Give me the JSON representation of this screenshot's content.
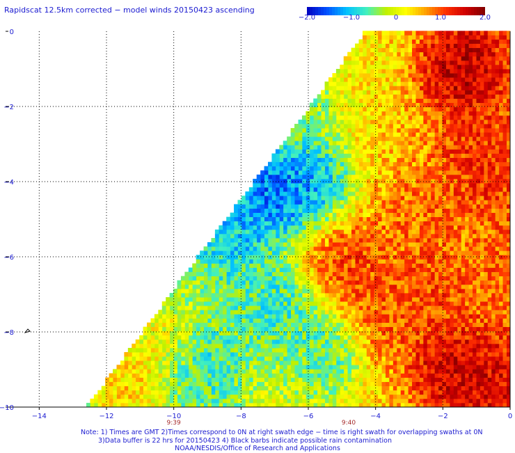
{
  "title": "Rapidscat 12.5km corrected − model winds 20150423 ascending",
  "colorbar": {
    "min": -2.0,
    "max": 2.0,
    "ticks": [
      {
        "value": -2.0,
        "label": "−2.0"
      },
      {
        "value": -1.0,
        "label": "−1.0"
      },
      {
        "value": 0,
        "label": "0"
      },
      {
        "value": 1.0,
        "label": "1.0"
      },
      {
        "value": 2.0,
        "label": "2.0"
      }
    ],
    "colors": [
      "#0000c0",
      "#0050ff",
      "#00c0ff",
      "#40f0c0",
      "#c0f000",
      "#ffff00",
      "#ffa000",
      "#ff3000",
      "#d00000",
      "#800000"
    ]
  },
  "chart_data": {
    "type": "heatmap",
    "title": "Rapidscat 12.5km corrected − model winds 20150423 ascending",
    "xlabel": "",
    "ylabel": "",
    "xlim": [
      -15,
      0
    ],
    "ylim": [
      -10,
      0
    ],
    "x_ticks": [
      {
        "value": -14,
        "label": "−14"
      },
      {
        "value": -12,
        "label": "−12"
      },
      {
        "value": -10,
        "label": "−10"
      },
      {
        "value": -8,
        "label": "−8"
      },
      {
        "value": -6,
        "label": "−6"
      },
      {
        "value": -4,
        "label": "−4"
      },
      {
        "value": -2,
        "label": "−2"
      },
      {
        "value": 0,
        "label": "0"
      }
    ],
    "y_ticks": [
      {
        "value": 0,
        "label": "0"
      },
      {
        "value": -2,
        "label": "−2"
      },
      {
        "value": -4,
        "label": "−4"
      },
      {
        "value": -6,
        "label": "−6"
      },
      {
        "value": -8,
        "label": "−8"
      },
      {
        "value": -10,
        "label": "−10"
      }
    ],
    "grid": true,
    "swath_edge": [
      [
        -12.6,
        -10
      ],
      [
        -4.3,
        0
      ]
    ],
    "swath_time_labels": [
      {
        "lon": -10,
        "label": "9:39"
      },
      {
        "lon": -4.8,
        "label": "9:40"
      }
    ],
    "anomaly_regions": [
      {
        "lon": -1.5,
        "lat": -1.0,
        "value": 1.9
      },
      {
        "lon": -1.0,
        "lat": -3.5,
        "value": 1.3
      },
      {
        "lon": -1.8,
        "lat": -9.0,
        "value": 1.8
      },
      {
        "lon": -0.5,
        "lat": -9.5,
        "value": 1.6
      },
      {
        "lon": -2.5,
        "lat": -7.0,
        "value": 1.2
      },
      {
        "lon": -4.8,
        "lat": -6.2,
        "value": 1.3
      },
      {
        "lon": -3.6,
        "lat": -7.6,
        "value": 1.1
      },
      {
        "lon": -2.8,
        "lat": -5.0,
        "value": 1.0
      },
      {
        "lon": -7.2,
        "lat": -4.3,
        "value": -1.8
      },
      {
        "lon": -6.0,
        "lat": -4.0,
        "value": -1.5
      },
      {
        "lon": -8.2,
        "lat": -5.5,
        "value": -1.2
      },
      {
        "lon": -7.0,
        "lat": -7.4,
        "value": -1.0
      },
      {
        "lon": -9.0,
        "lat": -8.8,
        "value": -0.9
      },
      {
        "lon": -5.6,
        "lat": -8.6,
        "value": -0.8
      },
      {
        "lon": -6.2,
        "lat": -1.8,
        "value": -0.6
      },
      {
        "lon": -11.5,
        "lat": -9.5,
        "value": 0.7
      },
      {
        "lon": -10.5,
        "lat": -8.2,
        "value": 0.3
      },
      {
        "lon": -4.4,
        "lat": -1.0,
        "value": 0.2
      }
    ]
  },
  "notes": {
    "line1": "Note: 1) Times are GMT 2)Times correspond to 0N at right swath edge − time is right swath for overlapping swaths at 0N",
    "line2": "3)Data buffer is 22 hrs for 20150423 4) Black barbs indicate possible rain contamination",
    "line3": "NOAA/NESDIS/Office of Research and Applications"
  }
}
